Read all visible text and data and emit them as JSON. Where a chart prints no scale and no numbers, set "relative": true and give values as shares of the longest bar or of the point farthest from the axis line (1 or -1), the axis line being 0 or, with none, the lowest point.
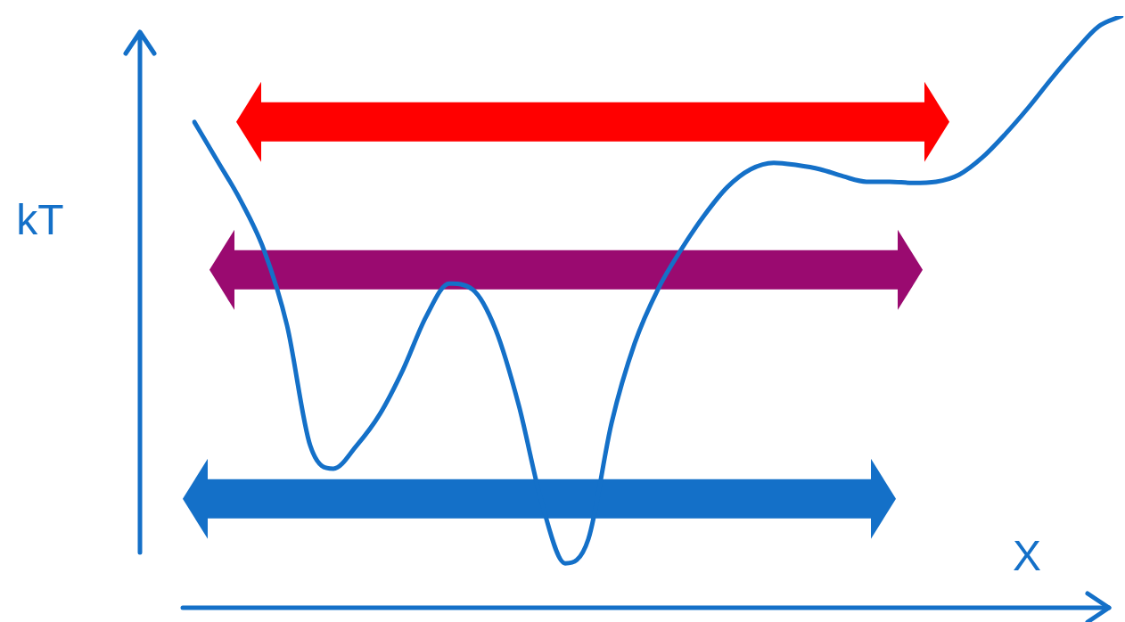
{
  "chart_data": {
    "type": "line",
    "relative": true,
    "xlabel": "X",
    "ylabel": "kT",
    "legend": false,
    "grid": false,
    "marker": "none",
    "categories": [
      null,
      null,
      null,
      null,
      null,
      null,
      null,
      null,
      null,
      null,
      null,
      null,
      null,
      null,
      null,
      null,
      null,
      null,
      null,
      null,
      null,
      null,
      null,
      null,
      null,
      null,
      null,
      null,
      null,
      null,
      null,
      null,
      null,
      null,
      null,
      null,
      null,
      null,
      null,
      null,
      null
    ],
    "series": [
      {
        "color": "#1470c8",
        "values": [
          0.821,
          0.755,
          0.688,
          0.605,
          0.477,
          0.274,
          0.235,
          0.274,
          0.327,
          0.402,
          0.492,
          0.548,
          0.538,
          0.47,
          0.342,
          0.176,
          0.075,
          0.116,
          0.312,
          0.447,
          0.538,
          0.605,
          0.663,
          0.711,
          0.741,
          0.752,
          0.748,
          0.741,
          0.729,
          0.72,
          0.72,
          0.718,
          0.72,
          0.732,
          0.761,
          0.801,
          0.846,
          0.895,
          0.941,
          0.982,
          1
        ]
      }
    ],
    "ref_lines": [
      {
        "axis": "y",
        "value": 0.821,
        "color": "#ff0000"
      },
      {
        "axis": "y",
        "value": 0.571,
        "color": "#9a0a70"
      },
      {
        "axis": "y",
        "value": 0.184,
        "color": "#1470c8"
      }
    ]
  }
}
